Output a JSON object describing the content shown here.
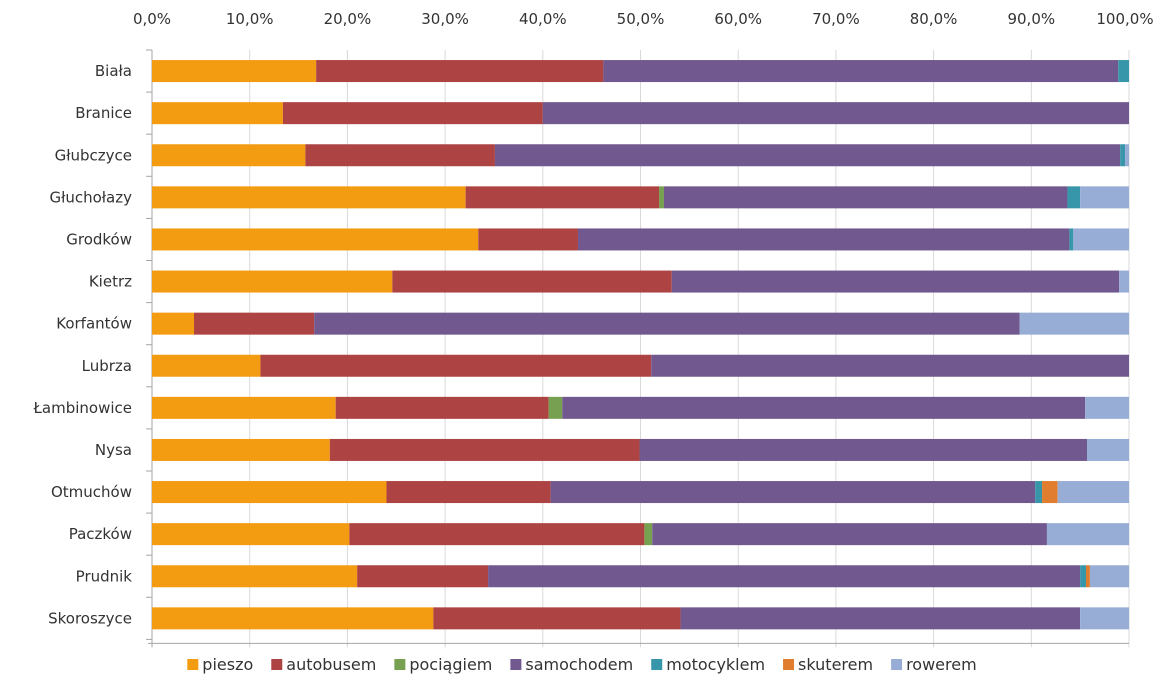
{
  "chart_data": {
    "type": "bar",
    "orientation": "horizontal",
    "stacked": "percent",
    "title": "",
    "xlabel": "",
    "ylabel": "",
    "xlim": [
      0,
      100
    ],
    "x_ticks": [
      "0,0%",
      "10,0%",
      "20,0%",
      "30,0%",
      "40,0%",
      "50,0%",
      "60,0%",
      "70,0%",
      "80,0%",
      "90,0%",
      "100,0%"
    ],
    "x_axis_position": "top",
    "grid": true,
    "legend_position": "bottom",
    "categories": [
      "Biała",
      "Branice",
      "Głubczyce",
      "Głuchołazy",
      "Grodków",
      "Kietrz",
      "Korfantów",
      "Lubrza",
      "Łambinowice",
      "Nysa",
      "Otmuchów",
      "Paczków",
      "Prudnik",
      "Skoroszyce"
    ],
    "series": [
      {
        "name": "pieszo",
        "color": "#f39c12",
        "values": [
          16.8,
          13.4,
          15.7,
          32.1,
          33.4,
          24.6,
          4.3,
          11.1,
          18.8,
          18.2,
          24.0,
          20.2,
          21.0,
          28.8
        ]
      },
      {
        "name": "autobusem",
        "color": "#ad4443",
        "values": [
          29.4,
          26.6,
          19.4,
          19.8,
          10.2,
          28.6,
          12.3,
          40.0,
          21.8,
          31.7,
          16.8,
          30.2,
          13.4,
          25.3
        ]
      },
      {
        "name": "pociągiem",
        "color": "#77a050",
        "values": [
          0,
          0,
          0,
          0.5,
          0,
          0,
          0,
          0,
          1.4,
          0,
          0,
          0.8,
          0,
          0
        ]
      },
      {
        "name": "samochodem",
        "color": "#71588f",
        "values": [
          52.7,
          60.0,
          64.0,
          41.3,
          50.3,
          45.8,
          72.2,
          48.9,
          53.5,
          45.8,
          49.6,
          40.4,
          60.6,
          40.9
        ]
      },
      {
        "name": "motocyklem",
        "color": "#3796a9",
        "values": [
          1.1,
          0,
          0.5,
          1.3,
          0.4,
          0,
          0,
          0,
          0,
          0,
          0.7,
          0,
          0.6,
          0
        ]
      },
      {
        "name": "skuterem",
        "color": "#e07d2e",
        "values": [
          0,
          0,
          0,
          0,
          0,
          0,
          0,
          0,
          0,
          0,
          1.6,
          0,
          0.4,
          0
        ]
      },
      {
        "name": "rowerem",
        "color": "#98add6",
        "values": [
          0,
          0,
          0.4,
          5.0,
          5.7,
          1.0,
          11.2,
          0,
          4.5,
          4.3,
          7.3,
          8.4,
          4.0,
          5.0
        ]
      }
    ]
  }
}
